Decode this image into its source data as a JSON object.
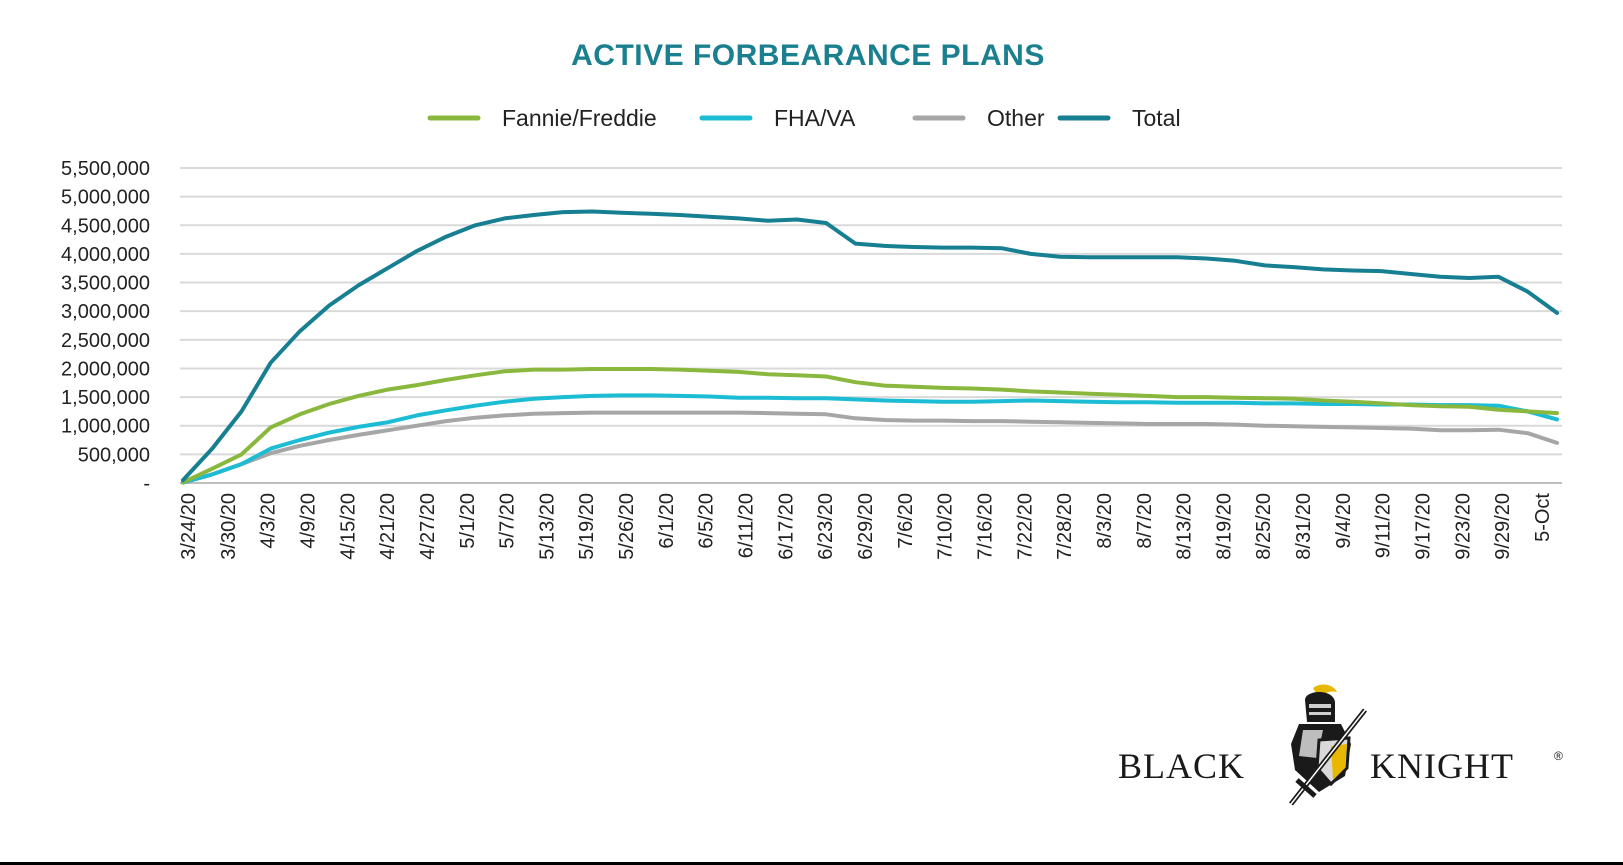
{
  "chart_data": {
    "type": "line",
    "title": "ACTIVE FORBEARANCE PLANS",
    "xlabel": "",
    "ylabel": "",
    "ylim": [
      0,
      5500000
    ],
    "y_ticks": [
      0,
      500000,
      1000000,
      1500000,
      2000000,
      2500000,
      3000000,
      3500000,
      4000000,
      4500000,
      5000000,
      5500000
    ],
    "y_tick_labels": [
      "-",
      "500,000",
      "1,000,000",
      "1,500,000",
      "2,000,000",
      "2,500,000",
      "3,000,000",
      "3,500,000",
      "4,000,000",
      "4,500,000",
      "5,000,000",
      "5,500,000"
    ],
    "x_tick_labels": [
      "3/24/20",
      "3/30/20",
      "4/3/20",
      "4/9/20",
      "4/15/20",
      "4/21/20",
      "4/27/20",
      "5/1/20",
      "5/7/20",
      "5/13/20",
      "5/19/20",
      "5/26/20",
      "6/1/20",
      "6/5/20",
      "6/11/20",
      "6/17/20",
      "6/23/20",
      "6/29/20",
      "7/6/20",
      "7/10/20",
      "7/16/20",
      "7/22/20",
      "7/28/20",
      "8/3/20",
      "8/7/20",
      "8/13/20",
      "8/19/20",
      "8/25/20",
      "8/31/20",
      "9/4/20",
      "9/11/20",
      "9/17/20",
      "9/23/20",
      "9/29/20",
      "5-Oct"
    ],
    "grid": true,
    "legend_position": "top",
    "colors": {
      "Fannie/Freddie": "#8ab83e",
      "FHA/VA": "#1bbcd4",
      "Other": "#a6a6a6",
      "Total": "#167f91"
    },
    "series": [
      {
        "name": "Fannie/Freddie",
        "values": [
          10000,
          250000,
          500000,
          970000,
          1200000,
          1380000,
          1520000,
          1630000,
          1710000,
          1800000,
          1880000,
          1950000,
          1980000,
          1980000,
          1990000,
          1990000,
          1990000,
          1980000,
          1960000,
          1940000,
          1900000,
          1880000,
          1860000,
          1760000,
          1700000,
          1680000,
          1660000,
          1650000,
          1630000,
          1600000,
          1580000,
          1560000,
          1540000,
          1520000,
          1500000,
          1500000,
          1490000,
          1480000,
          1470000,
          1440000,
          1420000,
          1390000,
          1360000,
          1340000,
          1330000,
          1280000,
          1250000,
          1220000
        ]
      },
      {
        "name": "FHA/VA",
        "values": [
          10000,
          150000,
          330000,
          600000,
          750000,
          880000,
          980000,
          1060000,
          1180000,
          1270000,
          1350000,
          1420000,
          1470000,
          1500000,
          1520000,
          1530000,
          1530000,
          1520000,
          1510000,
          1490000,
          1490000,
          1480000,
          1480000,
          1460000,
          1440000,
          1430000,
          1420000,
          1420000,
          1430000,
          1440000,
          1430000,
          1420000,
          1410000,
          1410000,
          1400000,
          1400000,
          1400000,
          1390000,
          1390000,
          1380000,
          1380000,
          1370000,
          1370000,
          1360000,
          1360000,
          1350000,
          1250000,
          1110000
        ]
      },
      {
        "name": "Other",
        "values": [
          5000,
          150000,
          330000,
          520000,
          650000,
          750000,
          840000,
          920000,
          1000000,
          1080000,
          1140000,
          1180000,
          1210000,
          1220000,
          1230000,
          1230000,
          1230000,
          1230000,
          1230000,
          1230000,
          1220000,
          1210000,
          1200000,
          1130000,
          1100000,
          1090000,
          1090000,
          1080000,
          1080000,
          1070000,
          1060000,
          1050000,
          1040000,
          1030000,
          1030000,
          1030000,
          1020000,
          1000000,
          990000,
          980000,
          970000,
          960000,
          950000,
          920000,
          920000,
          930000,
          870000,
          700000
        ]
      },
      {
        "name": "Total",
        "values": [
          50000,
          600000,
          1250000,
          2100000,
          2650000,
          3100000,
          3450000,
          3750000,
          4050000,
          4300000,
          4500000,
          4620000,
          4680000,
          4730000,
          4740000,
          4720000,
          4700000,
          4680000,
          4650000,
          4620000,
          4580000,
          4600000,
          4540000,
          4180000,
          4140000,
          4120000,
          4110000,
          4110000,
          4100000,
          4000000,
          3950000,
          3940000,
          3940000,
          3940000,
          3940000,
          3920000,
          3880000,
          3800000,
          3770000,
          3730000,
          3710000,
          3700000,
          3650000,
          3600000,
          3580000,
          3600000,
          3340000,
          2970000
        ]
      }
    ]
  },
  "logo": {
    "left_text": "BLACK",
    "right_text": "KNIGHT",
    "mark": "®"
  }
}
